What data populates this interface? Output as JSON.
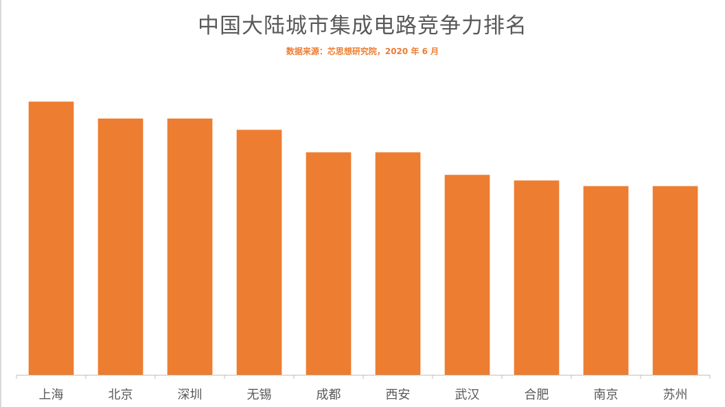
{
  "chart_data": {
    "type": "bar",
    "title": "中国大陆城市集成电路竞争力排名",
    "subtitle": "数据来源：芯思想研究院，2020 年 6 月",
    "categories": [
      "上海",
      "北京",
      "深圳",
      "无锡",
      "成都",
      "西安",
      "武汉",
      "合肥",
      "南京",
      "苏州"
    ],
    "values": [
      97,
      91,
      91,
      87,
      79,
      79,
      71,
      69,
      67,
      67
    ],
    "ylim": [
      0,
      100
    ],
    "grid": false,
    "legend": "none",
    "bar_color": "#ed7d31",
    "axis_color": "#bfbfbf"
  }
}
